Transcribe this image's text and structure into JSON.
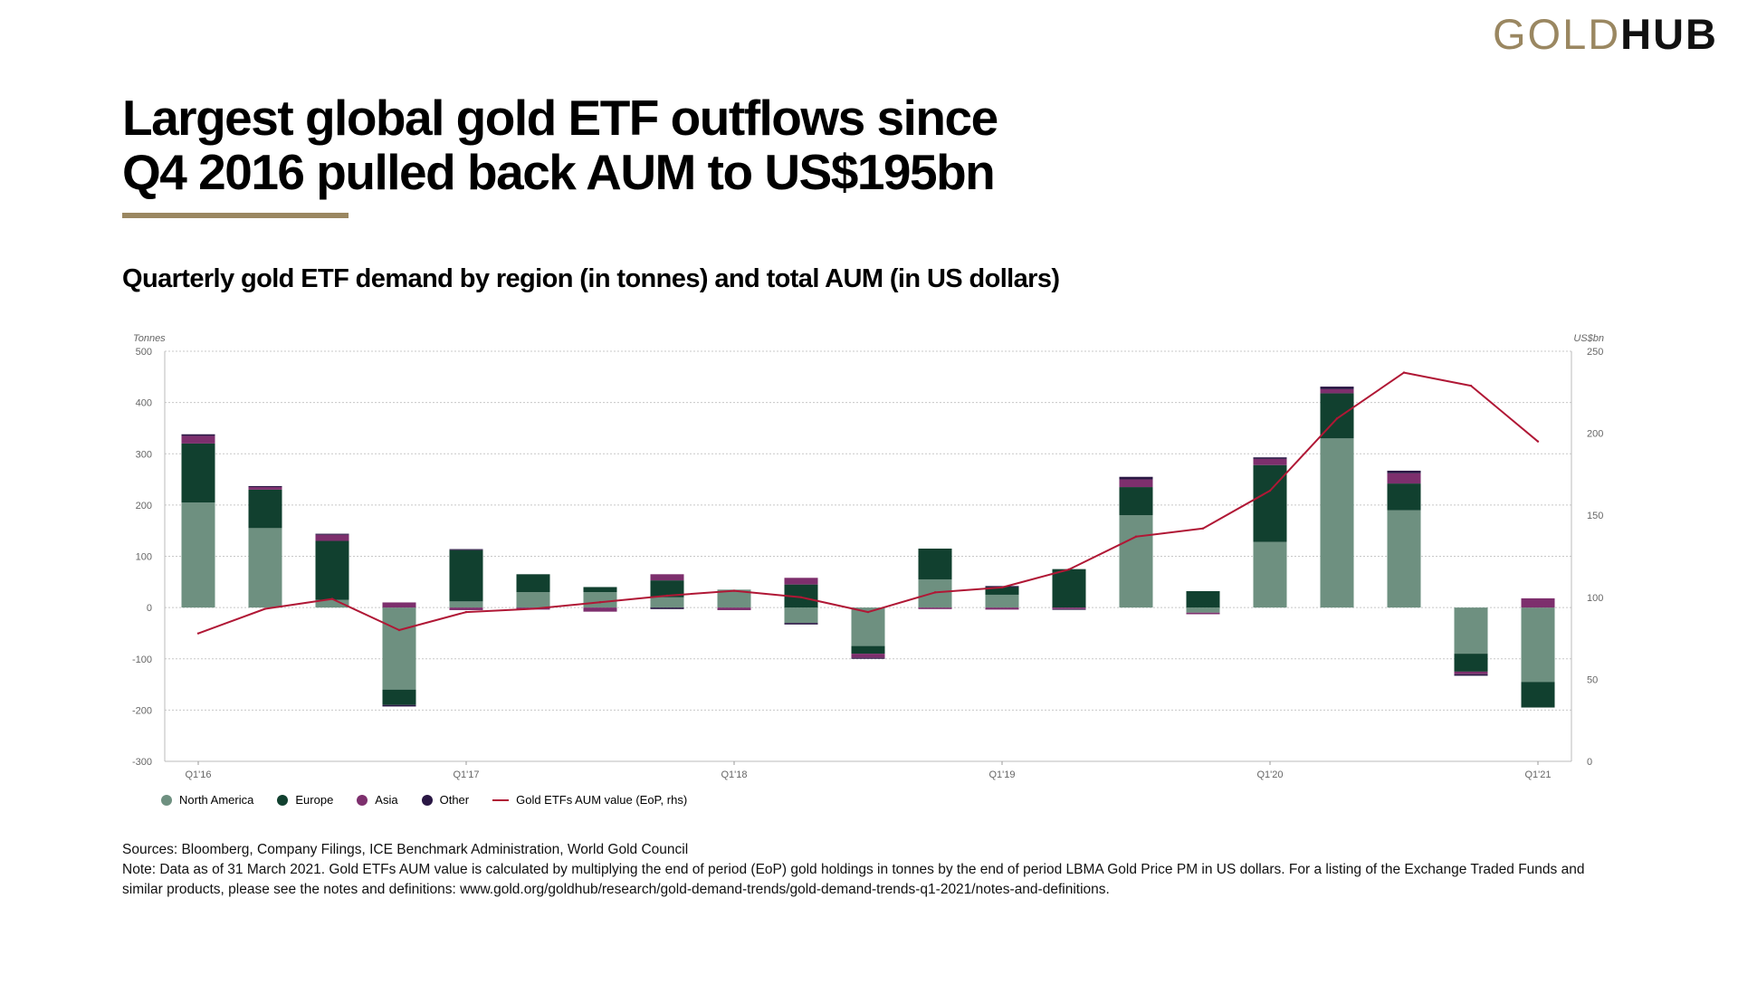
{
  "logo": {
    "gold": "GOLD",
    "hub": "HUB"
  },
  "title": {
    "line1": "Largest global gold ETF outflows since",
    "line2": "Q4 2016 pulled back AUM to US$195bn"
  },
  "subtitle": "Quarterly gold ETF demand by region (in tonnes) and total AUM (in US dollars)",
  "colors": {
    "accent": "#9a8761",
    "north_america": "#6e9080",
    "europe": "#11402f",
    "asia": "#7d2f6d",
    "other": "#2a1744",
    "aum_line": "#b01735"
  },
  "chart_data": {
    "type": "bar",
    "stacked": true,
    "categories": [
      "Q1'16",
      "Q2'16",
      "Q3'16",
      "Q4'16",
      "Q1'17",
      "Q2'17",
      "Q3'17",
      "Q4'17",
      "Q1'18",
      "Q2'18",
      "Q3'18",
      "Q4'18",
      "Q1'19",
      "Q2'19",
      "Q3'19",
      "Q4'19",
      "Q1'20",
      "Q2'20",
      "Q3'20",
      "Q4'20",
      "Q1'21"
    ],
    "x_tick_labels": [
      "Q1'16",
      "",
      "",
      "",
      "Q1'17",
      "",
      "",
      "",
      "Q1'18",
      "",
      "",
      "",
      "Q1'19",
      "",
      "",
      "",
      "Q1'20",
      "",
      "",
      "",
      "Q1'21"
    ],
    "series": [
      {
        "name": "North America",
        "values": [
          205,
          155,
          15,
          -160,
          12,
          30,
          30,
          20,
          35,
          -30,
          -75,
          55,
          25,
          0,
          180,
          -10,
          128,
          330,
          190,
          -90,
          -145
        ]
      },
      {
        "name": "Europe",
        "values": [
          115,
          75,
          115,
          -30,
          100,
          35,
          10,
          33,
          0,
          45,
          -15,
          60,
          15,
          75,
          55,
          32,
          150,
          88,
          52,
          -35,
          -50
        ]
      },
      {
        "name": "Asia",
        "values": [
          15,
          5,
          12,
          10,
          -5,
          -4,
          -8,
          12,
          -5,
          13,
          -8,
          -3,
          -4,
          -3,
          15,
          -3,
          12,
          8,
          20,
          -5,
          18
        ]
      },
      {
        "name": "Other",
        "values": [
          3,
          2,
          2,
          -3,
          2,
          0,
          0,
          -3,
          0,
          -3,
          -2,
          0,
          2,
          -1,
          5,
          0,
          3,
          5,
          5,
          -3,
          0
        ]
      }
    ],
    "line_series": {
      "name": "Gold ETFs AUM value (EoP, rhs)",
      "values": [
        78,
        93,
        99,
        80,
        91,
        93,
        97,
        101,
        104,
        100,
        91,
        103,
        106,
        117,
        137,
        142,
        165,
        209,
        237,
        229,
        195
      ]
    },
    "ylabel": "Tonnes",
    "ylim": [
      -300,
      500
    ],
    "yticks": [
      500,
      400,
      300,
      200,
      100,
      0,
      -100,
      -200,
      -300
    ],
    "y2label": "US$bn",
    "y2lim": [
      0,
      250
    ],
    "y2ticks": [
      250,
      200,
      150,
      100,
      50,
      0
    ],
    "grid": true,
    "legend": "bottom-left",
    "legend_entries": [
      "North America",
      "Europe",
      "Asia",
      "Other",
      "Gold ETFs AUM value (EoP, rhs)"
    ]
  },
  "notes": {
    "sources": "Sources: Bloomberg, Company Filings, ICE Benchmark Administration, World Gold Council",
    "note": "Note: Data as of 31 March 2021. Gold ETFs AUM value is calculated by multiplying the end of period (EoP) gold holdings in tonnes by the end of period LBMA Gold Price PM in US dollars. For a listing of the Exchange Traded Funds and similar products, please see the notes and definitions: www.gold.org/goldhub/research/gold-demand-trends/gold-demand-trends-q1-2021/notes-and-definitions."
  }
}
